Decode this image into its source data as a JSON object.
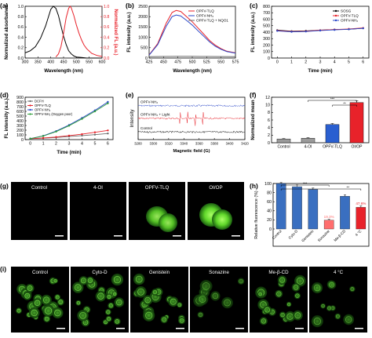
{
  "panels": {
    "a": "(a)",
    "b": "(b)",
    "c": "(c)",
    "d": "(d)",
    "e": "(e)",
    "f": "(f)",
    "g": "(g)",
    "h": "(h)",
    "i": "(i)"
  },
  "colors": {
    "black": "#000000",
    "red": "#e8222a",
    "blue": "#2a47c8",
    "gray": "#6b6b6b",
    "green": "#2f9e3a",
    "pink": "#e8222a",
    "magenta": "#c0208a",
    "f_gray": "#9a9a9a",
    "f_blue": "#2a5fd0",
    "f_red": "#e8222a",
    "h_blue": "#3a6fc0",
    "h_red": "#e8222a",
    "h_pink": "#ff6e6e"
  },
  "chart_data": [
    {
      "id": "a",
      "type": "line",
      "xlabel": "Wavelength (nm)",
      "ylabel": "Normalized absorbance",
      "y2label": "Normalized FL (a.u.)",
      "xlim": [
        300,
        600
      ],
      "ylim": [
        0,
        1.0
      ],
      "xticks": [
        300,
        350,
        400,
        450,
        500,
        550,
        600
      ],
      "yticks": [
        0.0,
        0.2,
        0.4,
        0.6,
        0.8,
        1.0
      ],
      "yticklabels": [
        "0.0",
        "0.2",
        "0.4",
        "0.6",
        "0.8",
        "1.0"
      ],
      "series": [
        {
          "axis": "left",
          "color": "black",
          "x": [
            300,
            320,
            340,
            360,
            380,
            390,
            400,
            410,
            420,
            430,
            440,
            450,
            460,
            470,
            480,
            490,
            500,
            520,
            540,
            560,
            580,
            600
          ],
          "y": [
            0.1,
            0.14,
            0.22,
            0.38,
            0.62,
            0.78,
            0.94,
            1.0,
            0.96,
            0.82,
            0.62,
            0.42,
            0.26,
            0.14,
            0.08,
            0.04,
            0.02,
            0.01,
            0.0,
            0.0,
            0.0,
            0.0
          ]
        },
        {
          "axis": "right",
          "color": "red",
          "x": [
            420,
            430,
            440,
            450,
            460,
            470,
            475,
            480,
            490,
            500,
            510,
            520,
            530,
            540,
            560,
            580,
            600
          ],
          "y": [
            0.02,
            0.08,
            0.22,
            0.48,
            0.78,
            0.96,
            1.0,
            0.97,
            0.82,
            0.64,
            0.48,
            0.35,
            0.25,
            0.18,
            0.09,
            0.05,
            0.03
          ]
        }
      ]
    },
    {
      "id": "b",
      "type": "line",
      "xlabel": "Wavelength (nm)",
      "ylabel": "FL intensity (a.u.)",
      "xlim": [
        425,
        575
      ],
      "ylim": [
        0,
        2500
      ],
      "xticks": [
        425,
        450,
        475,
        500,
        525,
        550,
        575
      ],
      "yticks": [
        0,
        500,
        1000,
        1500,
        2000,
        2500
      ],
      "legend_position": "top-right",
      "series": [
        {
          "name": "OPFV-TLQ",
          "color": "red",
          "x": [
            425,
            440,
            455,
            465,
            472,
            480,
            490,
            500,
            510,
            520,
            530,
            540,
            550,
            560,
            575
          ],
          "y": [
            150,
            700,
            1700,
            2200,
            2300,
            2250,
            2000,
            1750,
            1450,
            1150,
            850,
            620,
            450,
            330,
            250
          ]
        },
        {
          "name": "OPFV-NH₂",
          "color": "blue",
          "x": [
            425,
            440,
            455,
            465,
            472,
            480,
            490,
            500,
            510,
            520,
            530,
            540,
            550,
            560,
            575
          ],
          "y": [
            140,
            650,
            1550,
            2000,
            2080,
            2030,
            1820,
            1590,
            1320,
            1050,
            780,
            570,
            420,
            310,
            240
          ]
        },
        {
          "name": "OPFV-TLQ + NQO1",
          "color": "gray",
          "x": [
            425,
            450,
            475,
            500,
            525,
            550,
            575
          ],
          "y": [
            70,
            75,
            80,
            78,
            75,
            72,
            70
          ]
        }
      ]
    },
    {
      "id": "c",
      "type": "line",
      "xlabel": "Time (min)",
      "ylabel": "FL intensity (a.u.)",
      "xlim": [
        -0.4,
        6.4
      ],
      "ylim": [
        0,
        800
      ],
      "xticks": [
        0,
        1,
        2,
        3,
        4,
        5,
        6
      ],
      "yticks": [
        0,
        100,
        200,
        300,
        400,
        500,
        600,
        700,
        800
      ],
      "legend_position": "top-right",
      "series": [
        {
          "name": "SOSG",
          "color": "black",
          "x": [
            0,
            1,
            2,
            3,
            4,
            5,
            6
          ],
          "y": [
            430,
            415,
            420,
            430,
            440,
            445,
            460
          ]
        },
        {
          "name": "OPFV-TLQ",
          "color": "red",
          "x": [
            0,
            1,
            2,
            3,
            4,
            5,
            6
          ],
          "y": [
            425,
            410,
            415,
            430,
            440,
            450,
            465
          ]
        },
        {
          "name": "OPFV-NH₂",
          "color": "blue",
          "x": [
            0,
            1,
            2,
            3,
            4,
            5,
            6
          ],
          "y": [
            420,
            405,
            410,
            425,
            435,
            445,
            460
          ]
        }
      ]
    },
    {
      "id": "d",
      "type": "line",
      "xlabel": "Time (min)",
      "ylabel": "FL intensity (a.u.)",
      "xlim": [
        -0.4,
        6.4
      ],
      "ylim": [
        0,
        900
      ],
      "xticks": [
        0,
        1,
        2,
        3,
        4,
        5,
        6
      ],
      "yticks": [
        0,
        100,
        200,
        300,
        400,
        500,
        600,
        700,
        800,
        900
      ],
      "legend_position": "top-left",
      "series": [
        {
          "name": "DCFH",
          "color": "gray",
          "x": [
            0,
            1,
            2,
            3,
            4,
            5,
            6
          ],
          "y": [
            20,
            30,
            45,
            65,
            85,
            105,
            130
          ]
        },
        {
          "name": "OPFV-TLQ",
          "color": "red",
          "x": [
            0,
            1,
            2,
            3,
            4,
            5,
            6
          ],
          "y": [
            20,
            35,
            55,
            85,
            115,
            155,
            195
          ]
        },
        {
          "name": "OPFV-NH₂",
          "color": "blue",
          "x": [
            0,
            1,
            2,
            3,
            4,
            5,
            6
          ],
          "y": [
            20,
            80,
            180,
            310,
            460,
            620,
            800
          ]
        },
        {
          "name": "OPFV-NH₂ (Oxygen poor)",
          "color": "green",
          "x": [
            0,
            1,
            2,
            3,
            4,
            5,
            6
          ],
          "y": [
            20,
            75,
            170,
            295,
            440,
            600,
            770
          ]
        }
      ]
    },
    {
      "id": "e",
      "type": "line",
      "xlabel": "Magnetic field (G)",
      "ylabel": "Intensity",
      "xlim": [
        3280,
        3420
      ],
      "xticks": [
        3280,
        3300,
        3320,
        3340,
        3360,
        3380,
        3400,
        3420
      ],
      "annotations": [
        "OPFV-NH₂",
        "OPFV-NH₂ + Light",
        "Control"
      ],
      "series": [
        {
          "name": "OPFV-NH₂",
          "color": "blue",
          "offset": 0.8
        },
        {
          "name": "OPFV-NH₂ + Light",
          "color": "red",
          "offset": 0.5,
          "peaks": [
            3335,
            3345,
            3355,
            3365
          ]
        },
        {
          "name": "Control",
          "color": "black",
          "offset": 0.18
        }
      ]
    },
    {
      "id": "f",
      "type": "bar",
      "ylabel": "Normalized mean",
      "categories": [
        "Control",
        "4-OI",
        "OPFV-TLQ",
        "OI/OP"
      ],
      "values": [
        1.0,
        1.2,
        4.8,
        10.6
      ],
      "errors": [
        0.1,
        0.15,
        0.3,
        0.5
      ],
      "bar_colors": [
        "f_gray",
        "f_gray",
        "f_blue",
        "f_red"
      ],
      "ylim": [
        0,
        12
      ],
      "yticks": [
        0,
        2,
        4,
        6,
        8,
        10,
        12
      ],
      "significance": [
        "***",
        "**"
      ]
    },
    {
      "id": "h",
      "type": "bar",
      "ylabel": "Relative fluorescence (%)",
      "categories": [
        "Control",
        "Cyto-D",
        "Genistein",
        "Sonazine",
        "Me-β-CD",
        "4 °C"
      ],
      "values": [
        100,
        93,
        87,
        19.3,
        72,
        47.6
      ],
      "errors": [
        2,
        4,
        3,
        2,
        3,
        3
      ],
      "bar_colors": [
        "h_blue",
        "h_blue",
        "h_blue",
        "h_pink",
        "h_blue",
        "h_red"
      ],
      "ylim": [
        0,
        100
      ],
      "yticks": [
        0,
        20,
        40,
        60,
        80,
        100
      ],
      "value_labels": [
        "",
        "",
        "",
        "19.3%",
        "",
        "47.6%"
      ],
      "significance": [
        "***",
        "**"
      ]
    }
  ],
  "microscopy_g": {
    "labels": [
      "Control",
      "4-OI",
      "OPFV-TLQ",
      "OI/OP"
    ]
  },
  "microscopy_i": {
    "labels": [
      "Control",
      "Cyto-D",
      "Genistein",
      "Sonazine",
      "Me-β-CD",
      "4 °C"
    ]
  }
}
